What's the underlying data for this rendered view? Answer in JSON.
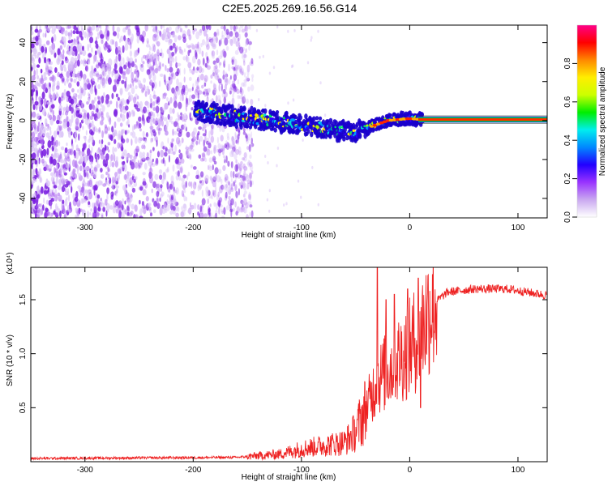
{
  "title": "C2E5.2025.269.16.56.G14",
  "colors": {
    "snr_line": "#ee2222",
    "spec_dots": "#8a2be2",
    "axes": "#000000"
  },
  "chart_data": [
    {
      "type": "heatmap",
      "name": "spectrogram",
      "xlabel": "Height of straight line (km)",
      "ylabel": "Frequency (Hz)",
      "xlim": [
        -350,
        127
      ],
      "ylim": [
        -50,
        49
      ],
      "xticks": [
        -300,
        -200,
        -100,
        0,
        100
      ],
      "xtick_labels": [
        "-300",
        "-200",
        "-100",
        "0",
        "100"
      ],
      "yticks": [
        -40,
        -20,
        0,
        20,
        40
      ],
      "ytick_labels": [
        "-40",
        "-20",
        "0",
        "20",
        "40"
      ],
      "noise_region_km": [
        -350,
        -145
      ],
      "signal_track": [
        {
          "km": -195,
          "hz": 5
        },
        {
          "km": -160,
          "hz": 2
        },
        {
          "km": -130,
          "hz": 0
        },
        {
          "km": -100,
          "hz": -2
        },
        {
          "km": -70,
          "hz": -5
        },
        {
          "km": -50,
          "hz": -6
        },
        {
          "km": -35,
          "hz": -3
        },
        {
          "km": -20,
          "hz": 0
        },
        {
          "km": 0,
          "hz": 1
        },
        {
          "km": 10,
          "hz": 0.5
        },
        {
          "km": 127,
          "hz": 0.5
        }
      ],
      "colorbar": {
        "label": "Normalized spectral amplitude",
        "range": [
          0,
          1
        ],
        "ticks": [
          0.0,
          0.2,
          0.4,
          0.6,
          0.8
        ],
        "tick_labels": [
          "0.0",
          "0.2",
          "0.4",
          "0.6",
          "0.8"
        ],
        "colors": [
          "#ffffff",
          "#c9a8f0",
          "#9933ff",
          "#2200ff",
          "#0088ff",
          "#00eeee",
          "#00ee00",
          "#ccff00",
          "#ffee00",
          "#ff8800",
          "#ff0000",
          "#ff0088"
        ]
      }
    },
    {
      "type": "line",
      "name": "snr",
      "xlabel": "Height of straight line (km)",
      "ylabel": "SNR (10 * v/v)",
      "multiplier_label": "(x10⁴)",
      "xlim": [
        -350,
        127
      ],
      "ylim": [
        0,
        1.8
      ],
      "xticks": [
        -300,
        -200,
        -100,
        0,
        100
      ],
      "xtick_labels": [
        "-300",
        "-200",
        "-100",
        "0",
        "100"
      ],
      "yticks": [
        0.5,
        1.0,
        1.5
      ],
      "ytick_labels": [
        "0.5",
        "1.0",
        "1.5"
      ],
      "envelope": [
        {
          "km": -350,
          "v": 0.03
        },
        {
          "km": -160,
          "v": 0.04
        },
        {
          "km": -120,
          "v": 0.07
        },
        {
          "km": -100,
          "v": 0.12
        },
        {
          "km": -80,
          "v": 0.15
        },
        {
          "km": -60,
          "v": 0.18
        },
        {
          "km": -50,
          "v": 0.28
        },
        {
          "km": -40,
          "v": 0.5
        },
        {
          "km": -30,
          "v": 0.75
        },
        {
          "km": -20,
          "v": 0.85
        },
        {
          "km": -10,
          "v": 0.95
        },
        {
          "km": 0,
          "v": 1.05
        },
        {
          "km": 10,
          "v": 1.2
        },
        {
          "km": 20,
          "v": 1.45
        },
        {
          "km": 35,
          "v": 1.57
        },
        {
          "km": 60,
          "v": 1.6
        },
        {
          "km": 90,
          "v": 1.6
        },
        {
          "km": 127,
          "v": 1.54
        }
      ],
      "peaks": [
        {
          "km": -30,
          "v": 1.8
        },
        {
          "km": -22,
          "v": 1.5
        },
        {
          "km": -14,
          "v": 1.55
        },
        {
          "km": -2,
          "v": 1.6
        },
        {
          "km": 8,
          "v": 1.7
        },
        {
          "km": 10,
          "v": 0.5
        }
      ]
    }
  ]
}
